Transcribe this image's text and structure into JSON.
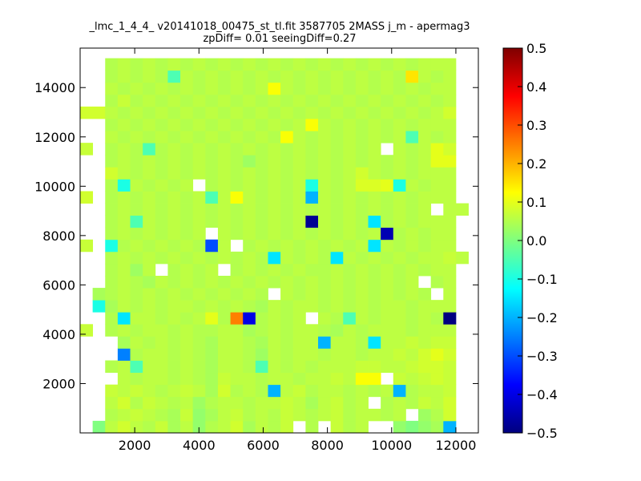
{
  "chart_data": {
    "type": "heatmap",
    "title": "_lmc_1_4_4_ v20141018_00475_st_tl.fit 3587705 2MASS j_m - apermag3",
    "subtitle": "zpDiff= 0.01 seeingDiff=0.27",
    "xlabel": "",
    "ylabel": "",
    "xlim": [
      300,
      12700
    ],
    "ylim": [
      0,
      15600
    ],
    "x_ticks": [
      2000,
      4000,
      6000,
      8000,
      10000,
      12000
    ],
    "y_ticks": [
      2000,
      4000,
      6000,
      8000,
      10000,
      12000,
      14000
    ],
    "x_tick_labels": [
      "2000",
      "4000",
      "6000",
      "8000",
      "10000",
      "12000"
    ],
    "y_tick_labels": [
      "2000",
      "4000",
      "6000",
      "8000",
      "10000",
      "12000",
      "14000"
    ],
    "x_edges": [
      300,
      690,
      1080,
      1470,
      1860,
      2250,
      2640,
      3030,
      3420,
      3810,
      4200,
      4590,
      4980,
      5370,
      5760,
      6150,
      6540,
      6930,
      7320,
      7710,
      8100,
      8490,
      8880,
      9270,
      9660,
      10050,
      10440,
      10830,
      11220,
      11610,
      12000,
      12390
    ],
    "y_edges": [
      0,
      490,
      980,
      1470,
      1960,
      2450,
      2940,
      3430,
      3920,
      4410,
      4900,
      5390,
      5880,
      6370,
      6860,
      7350,
      7840,
      8330,
      8820,
      9310,
      9800,
      10290,
      10780,
      11270,
      11760,
      12250,
      12740,
      13230,
      13720,
      14210,
      14700,
      15190
    ],
    "grid": false,
    "colormap": "jet",
    "colorbar": {
      "vmin": -0.5,
      "vmax": 0.5,
      "ticks": [
        -0.5,
        -0.4,
        -0.3,
        -0.2,
        -0.1,
        0.0,
        0.1,
        0.2,
        0.3,
        0.4,
        0.5
      ],
      "tick_labels": [
        "−0.5",
        "−0.4",
        "−0.3",
        "−0.2",
        "−0.1",
        "0.0",
        "0.1",
        "0.2",
        "0.3",
        "0.4",
        "0.5"
      ]
    },
    "values": [
      [
        null,
        0.0,
        0.06,
        0.08,
        0.06,
        0.05,
        0.07,
        0.04,
        0.06,
        0.02,
        0.05,
        0.06,
        0.08,
        0.04,
        0.06,
        0.05,
        0.07,
        null,
        0.05,
        null,
        0.07,
        0.05,
        0.06,
        null,
        null,
        0.02,
        0.0,
        0.02,
        0.04,
        -0.2,
        null,
        null
      ],
      [
        null,
        null,
        0.05,
        0.06,
        0.07,
        0.06,
        0.05,
        0.04,
        0.07,
        0.02,
        0.04,
        0.06,
        0.07,
        0.05,
        0.06,
        0.05,
        0.07,
        0.06,
        0.05,
        0.06,
        0.07,
        0.05,
        0.06,
        0.06,
        0.05,
        0.06,
        null,
        0.03,
        0.05,
        0.08,
        null,
        null
      ],
      [
        null,
        null,
        0.06,
        0.08,
        0.05,
        0.07,
        0.06,
        0.05,
        0.06,
        0.03,
        0.05,
        0.06,
        0.06,
        0.05,
        0.06,
        0.06,
        0.07,
        0.06,
        0.04,
        0.06,
        0.07,
        0.05,
        0.06,
        null,
        0.05,
        0.06,
        0.05,
        0.07,
        0.06,
        0.08,
        null,
        null
      ],
      [
        null,
        null,
        0.07,
        0.06,
        0.07,
        0.06,
        0.05,
        0.06,
        0.07,
        0.06,
        0.04,
        0.08,
        0.05,
        0.06,
        0.05,
        -0.2,
        0.06,
        0.07,
        0.05,
        0.06,
        0.06,
        0.05,
        0.06,
        0.05,
        0.06,
        -0.2,
        0.05,
        0.06,
        0.06,
        0.07,
        null,
        null
      ],
      [
        null,
        null,
        null,
        0.06,
        0.05,
        0.06,
        0.06,
        0.05,
        0.06,
        0.05,
        0.04,
        0.07,
        0.06,
        0.06,
        0.05,
        0.06,
        0.06,
        0.05,
        0.06,
        0.06,
        0.07,
        0.06,
        0.12,
        0.12,
        null,
        0.07,
        0.06,
        0.07,
        0.08,
        0.07,
        null,
        null
      ],
      [
        null,
        null,
        0.05,
        0.06,
        -0.05,
        0.06,
        0.06,
        0.05,
        0.06,
        0.05,
        0.04,
        0.06,
        0.06,
        0.05,
        -0.05,
        0.06,
        0.05,
        0.06,
        0.05,
        0.06,
        0.06,
        0.06,
        0.07,
        0.07,
        0.06,
        0.06,
        0.07,
        0.08,
        0.08,
        0.07,
        null,
        null
      ],
      [
        null,
        null,
        null,
        -0.25,
        0.05,
        0.06,
        0.06,
        0.05,
        0.06,
        0.05,
        0.04,
        0.06,
        0.06,
        0.05,
        0.03,
        0.06,
        0.05,
        0.06,
        0.06,
        0.05,
        0.06,
        0.06,
        0.05,
        0.06,
        0.06,
        0.07,
        0.06,
        0.08,
        0.1,
        0.08,
        null,
        null
      ],
      [
        null,
        null,
        null,
        0.04,
        0.06,
        0.05,
        0.06,
        0.05,
        0.06,
        0.05,
        0.04,
        0.06,
        0.06,
        0.05,
        0.04,
        0.06,
        0.05,
        0.06,
        0.06,
        -0.2,
        0.06,
        0.06,
        0.05,
        -0.15,
        0.06,
        0.06,
        0.07,
        0.06,
        0.07,
        0.07,
        null,
        null
      ],
      [
        0.07,
        null,
        0.05,
        0.06,
        0.05,
        0.06,
        0.06,
        0.05,
        0.06,
        0.05,
        0.05,
        0.06,
        0.06,
        0.04,
        0.05,
        0.06,
        0.05,
        0.06,
        0.06,
        0.05,
        0.04,
        0.06,
        0.05,
        0.06,
        0.06,
        0.06,
        0.05,
        0.06,
        0.06,
        0.06,
        null,
        null
      ],
      [
        null,
        null,
        0.05,
        -0.15,
        0.06,
        0.06,
        0.05,
        0.06,
        0.05,
        0.06,
        0.1,
        0.05,
        0.25,
        -0.4,
        0.05,
        0.06,
        0.05,
        0.06,
        null,
        0.06,
        0.05,
        -0.05,
        0.06,
        0.05,
        0.06,
        0.06,
        0.05,
        0.06,
        0.05,
        -0.5,
        null,
        null
      ],
      [
        null,
        -0.1,
        0.04,
        0.06,
        0.05,
        0.06,
        0.05,
        0.06,
        0.06,
        0.05,
        0.06,
        0.05,
        0.06,
        0.05,
        0.04,
        0.06,
        0.05,
        0.06,
        0.06,
        0.05,
        0.06,
        0.05,
        0.06,
        0.05,
        0.06,
        0.06,
        0.05,
        0.06,
        0.06,
        0.06,
        null,
        null
      ],
      [
        null,
        0.04,
        0.05,
        0.06,
        0.05,
        0.06,
        0.05,
        0.06,
        0.05,
        0.06,
        0.05,
        0.06,
        0.05,
        0.06,
        0.05,
        null,
        0.06,
        0.05,
        0.06,
        0.05,
        0.06,
        0.05,
        0.06,
        0.05,
        0.06,
        0.05,
        0.06,
        0.05,
        null,
        0.06,
        null,
        null
      ],
      [
        null,
        null,
        0.05,
        0.06,
        0.05,
        0.04,
        0.06,
        0.05,
        0.06,
        0.05,
        0.06,
        0.05,
        0.06,
        0.05,
        0.06,
        0.05,
        0.06,
        0.05,
        0.06,
        0.05,
        0.06,
        0.05,
        0.06,
        0.05,
        0.06,
        0.05,
        0.06,
        null,
        0.05,
        0.06,
        null,
        null
      ],
      [
        null,
        null,
        0.05,
        0.06,
        0.03,
        0.06,
        null,
        0.05,
        0.06,
        0.05,
        0.06,
        null,
        0.05,
        0.06,
        0.05,
        0.06,
        0.05,
        0.06,
        0.05,
        0.05,
        0.06,
        0.05,
        0.06,
        0.05,
        0.06,
        0.05,
        0.06,
        0.05,
        0.06,
        0.06,
        null,
        null
      ],
      [
        null,
        null,
        0.05,
        0.06,
        0.05,
        0.06,
        0.05,
        0.06,
        0.05,
        0.06,
        0.05,
        0.06,
        0.05,
        0.06,
        0.05,
        -0.15,
        0.06,
        0.05,
        0.06,
        0.05,
        -0.15,
        0.06,
        0.05,
        0.06,
        0.05,
        0.06,
        0.05,
        0.06,
        0.06,
        0.07,
        0.06,
        null
      ],
      [
        0.07,
        null,
        -0.1,
        0.05,
        0.06,
        0.05,
        0.06,
        0.05,
        0.06,
        0.05,
        -0.3,
        0.06,
        null,
        0.05,
        0.06,
        0.05,
        0.06,
        0.05,
        0.06,
        0.05,
        0.06,
        0.05,
        0.06,
        -0.15,
        0.06,
        0.05,
        0.06,
        0.05,
        0.06,
        0.06,
        null,
        null
      ],
      [
        null,
        null,
        0.05,
        0.06,
        0.05,
        0.06,
        0.05,
        0.06,
        0.05,
        0.06,
        null,
        0.06,
        0.05,
        0.06,
        0.05,
        0.06,
        0.05,
        0.06,
        0.05,
        0.06,
        0.05,
        0.06,
        0.05,
        0.06,
        -0.45,
        0.05,
        0.06,
        0.05,
        0.06,
        0.06,
        null,
        null
      ],
      [
        null,
        null,
        0.05,
        0.06,
        -0.05,
        0.06,
        0.05,
        0.06,
        0.05,
        0.06,
        0.05,
        0.06,
        0.05,
        0.06,
        0.05,
        0.06,
        0.05,
        0.06,
        -0.48,
        0.06,
        0.05,
        0.06,
        0.05,
        -0.15,
        0.05,
        0.06,
        0.05,
        0.06,
        0.06,
        0.06,
        null,
        null
      ],
      [
        null,
        null,
        0.05,
        0.06,
        0.05,
        0.06,
        0.05,
        0.06,
        0.05,
        0.06,
        0.05,
        0.06,
        0.05,
        0.06,
        0.05,
        0.06,
        0.05,
        0.06,
        0.05,
        0.06,
        0.05,
        0.06,
        0.05,
        0.06,
        0.05,
        0.06,
        0.05,
        0.06,
        null,
        0.06,
        0.06,
        0.08
      ],
      [
        0.08,
        null,
        0.05,
        0.06,
        0.05,
        0.06,
        0.05,
        0.06,
        0.05,
        0.06,
        -0.05,
        0.06,
        0.12,
        0.06,
        0.05,
        0.06,
        0.05,
        0.06,
        -0.2,
        0.06,
        0.05,
        0.06,
        0.05,
        0.06,
        0.05,
        0.06,
        0.05,
        0.06,
        0.06,
        0.06,
        null,
        null
      ],
      [
        null,
        null,
        0.05,
        -0.1,
        0.06,
        0.05,
        0.06,
        0.05,
        0.06,
        null,
        0.05,
        0.06,
        0.05,
        0.06,
        0.05,
        0.06,
        0.05,
        0.06,
        -0.1,
        0.06,
        0.05,
        0.06,
        0.09,
        0.09,
        0.1,
        -0.1,
        0.06,
        0.05,
        0.06,
        0.06,
        null,
        null
      ],
      [
        null,
        null,
        0.08,
        0.06,
        0.05,
        0.06,
        0.05,
        0.06,
        0.05,
        0.06,
        0.05,
        0.06,
        0.05,
        0.06,
        0.05,
        0.06,
        0.05,
        0.06,
        0.05,
        0.06,
        0.05,
        0.06,
        0.08,
        0.06,
        0.05,
        0.06,
        0.05,
        0.06,
        0.06,
        0.06,
        null,
        0.08
      ],
      [
        null,
        null,
        0.05,
        0.06,
        0.05,
        0.06,
        0.05,
        0.06,
        0.05,
        0.06,
        0.05,
        0.06,
        0.05,
        0.03,
        0.05,
        0.06,
        0.05,
        0.06,
        0.05,
        0.06,
        0.05,
        0.06,
        0.05,
        0.06,
        0.05,
        0.06,
        0.05,
        0.06,
        0.1,
        0.1,
        null,
        null
      ],
      [
        0.07,
        null,
        0.05,
        0.06,
        0.05,
        -0.05,
        0.05,
        0.06,
        0.05,
        0.06,
        0.05,
        0.06,
        0.05,
        0.06,
        0.05,
        0.06,
        0.05,
        0.06,
        0.05,
        0.06,
        0.05,
        0.06,
        0.05,
        0.06,
        null,
        0.06,
        0.05,
        0.06,
        0.1,
        0.08,
        null,
        null
      ],
      [
        null,
        null,
        0.06,
        0.05,
        0.06,
        0.05,
        0.06,
        0.05,
        0.06,
        0.05,
        0.06,
        0.05,
        0.06,
        0.05,
        0.06,
        0.05,
        0.12,
        0.06,
        0.05,
        0.06,
        0.05,
        0.06,
        0.05,
        0.06,
        0.05,
        0.06,
        -0.05,
        0.06,
        0.05,
        0.06,
        null,
        null
      ],
      [
        null,
        null,
        0.05,
        0.06,
        0.05,
        0.06,
        0.05,
        0.06,
        0.05,
        0.06,
        0.05,
        0.06,
        0.05,
        0.06,
        0.05,
        0.06,
        0.05,
        0.06,
        0.12,
        0.06,
        0.05,
        0.06,
        0.05,
        0.06,
        0.05,
        0.06,
        0.05,
        0.06,
        0.06,
        0.06,
        null,
        null
      ],
      [
        0.08,
        0.08,
        0.06,
        0.05,
        0.06,
        0.05,
        0.06,
        0.05,
        0.06,
        0.05,
        0.06,
        0.05,
        0.06,
        0.05,
        0.06,
        0.05,
        0.06,
        0.05,
        0.06,
        0.05,
        0.06,
        0.05,
        0.06,
        0.05,
        0.06,
        0.05,
        0.06,
        0.05,
        0.06,
        0.08,
        null,
        null
      ],
      [
        null,
        null,
        0.05,
        0.07,
        0.05,
        0.06,
        0.05,
        0.06,
        0.05,
        0.06,
        0.05,
        0.06,
        0.05,
        0.06,
        0.05,
        0.06,
        0.05,
        0.06,
        0.05,
        0.06,
        0.05,
        0.06,
        0.05,
        0.06,
        0.05,
        0.06,
        0.05,
        0.06,
        0.05,
        0.06,
        null,
        null
      ],
      [
        null,
        null,
        0.06,
        0.05,
        0.06,
        0.05,
        0.06,
        0.05,
        0.06,
        0.05,
        0.06,
        0.05,
        0.06,
        0.05,
        0.06,
        0.12,
        0.06,
        0.05,
        0.06,
        0.05,
        0.06,
        0.05,
        0.06,
        0.05,
        0.06,
        0.05,
        0.06,
        0.05,
        0.06,
        0.06,
        null,
        null
      ],
      [
        null,
        null,
        0.05,
        0.06,
        0.05,
        0.06,
        0.05,
        -0.05,
        0.06,
        0.05,
        0.06,
        0.05,
        0.06,
        0.05,
        0.06,
        0.05,
        0.06,
        0.05,
        0.06,
        0.05,
        0.06,
        0.05,
        0.06,
        0.05,
        0.06,
        0.05,
        0.15,
        0.06,
        0.05,
        0.06,
        null,
        null
      ],
      [
        null,
        null,
        0.05,
        0.06,
        0.05,
        0.06,
        0.05,
        0.06,
        0.05,
        0.06,
        0.05,
        0.06,
        0.05,
        0.06,
        0.05,
        0.06,
        0.05,
        0.06,
        0.05,
        0.06,
        0.05,
        0.06,
        0.05,
        0.06,
        0.05,
        0.06,
        0.05,
        0.06,
        0.06,
        0.06,
        null,
        null
      ]
    ]
  }
}
